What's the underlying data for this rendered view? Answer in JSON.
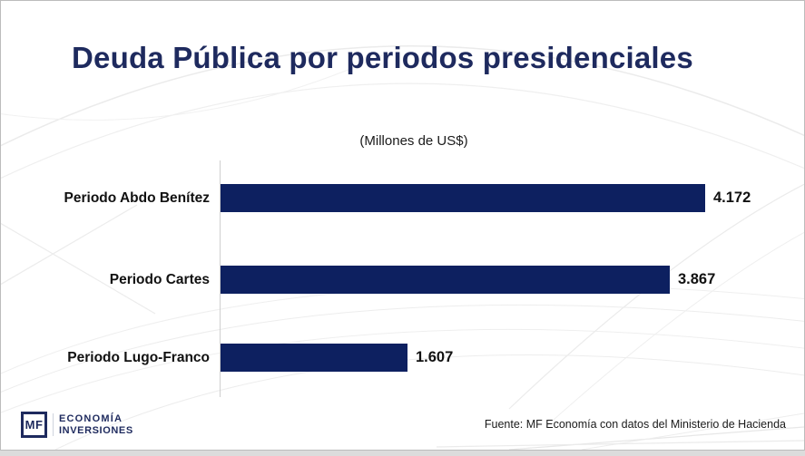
{
  "chart_data": {
    "type": "bar",
    "orientation": "horizontal",
    "title": "Deuda Pública por periodos presidenciales",
    "subtitle": "(Millones de US$)",
    "categories": [
      "Periodo Abdo Benítez",
      "Periodo Cartes",
      "Periodo Lugo-Franco"
    ],
    "values": [
      4172,
      3867,
      1607
    ],
    "value_labels": [
      "4.172",
      "3.867",
      "1.607"
    ],
    "xlim": [
      0,
      4500
    ],
    "grid": false,
    "legend": "none",
    "bar_color": "#0d2060",
    "source": "Fuente: MF Economía con datos del Ministerio de Hacienda"
  },
  "logo": {
    "monogram": "MF",
    "line1": "ECONOMÍA",
    "line2": "INVERSIONES"
  },
  "colors": {
    "title": "#1e2a5e",
    "bar": "#0d2060",
    "axis_line": "#cfcfcf",
    "slide_border": "#bcbcbc",
    "deco_line": "#e9e9e9"
  }
}
